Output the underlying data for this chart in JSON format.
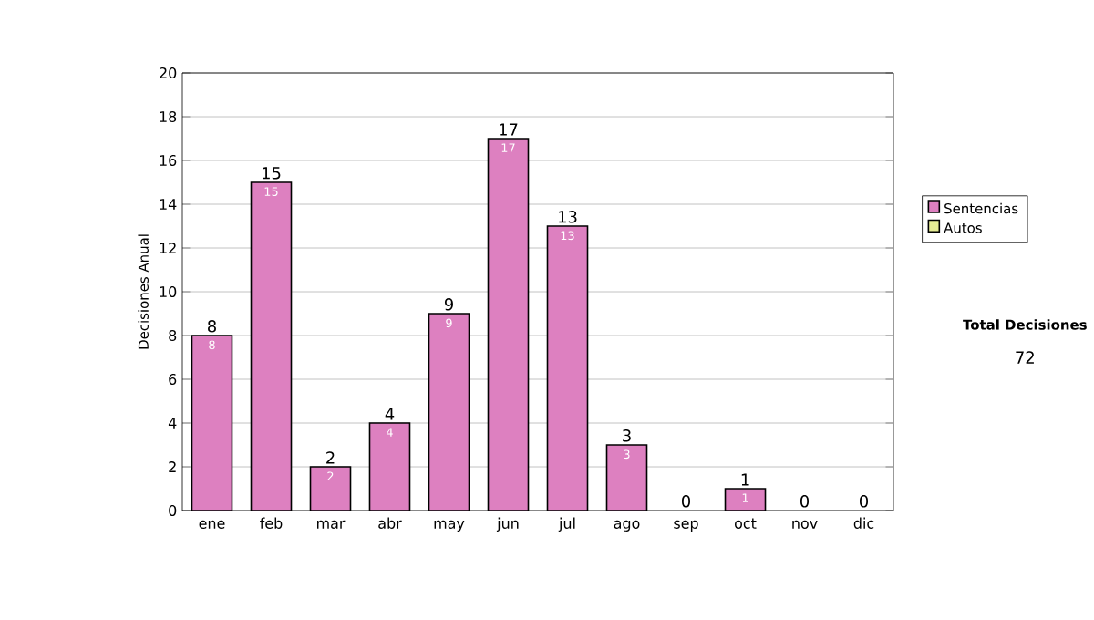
{
  "chart_data": {
    "type": "bar",
    "stacked": true,
    "ylabel": "Decisiones Anual",
    "categories": [
      "ene",
      "feb",
      "mar",
      "abr",
      "may",
      "jun",
      "jul",
      "ago",
      "sep",
      "oct",
      "nov",
      "dic"
    ],
    "series": [
      {
        "name": "Sentencias",
        "color": "#dd80c0",
        "values": [
          8,
          15,
          2,
          4,
          9,
          17,
          13,
          3,
          0,
          1,
          0,
          0
        ],
        "value_labels": [
          "8",
          "15",
          "2",
          "4",
          "9",
          "17",
          "13",
          "3",
          null,
          "1",
          null,
          null
        ]
      },
      {
        "name": "Autos",
        "color": "#e6ec94",
        "values": [
          0,
          0,
          0,
          0,
          0,
          0,
          0,
          0,
          0,
          0,
          0,
          0
        ]
      }
    ],
    "totals": [
      "8",
      "15",
      "2",
      "4",
      "9",
      "17",
      "13",
      "3",
      "0",
      "1",
      "0",
      "0"
    ],
    "ylim": [
      0,
      20
    ],
    "yticks": [
      0,
      2,
      4,
      6,
      8,
      10,
      12,
      14,
      16,
      18,
      20
    ],
    "grid": "y",
    "legend": "right",
    "annotations": [
      "Total Decisiones",
      "72"
    ]
  }
}
